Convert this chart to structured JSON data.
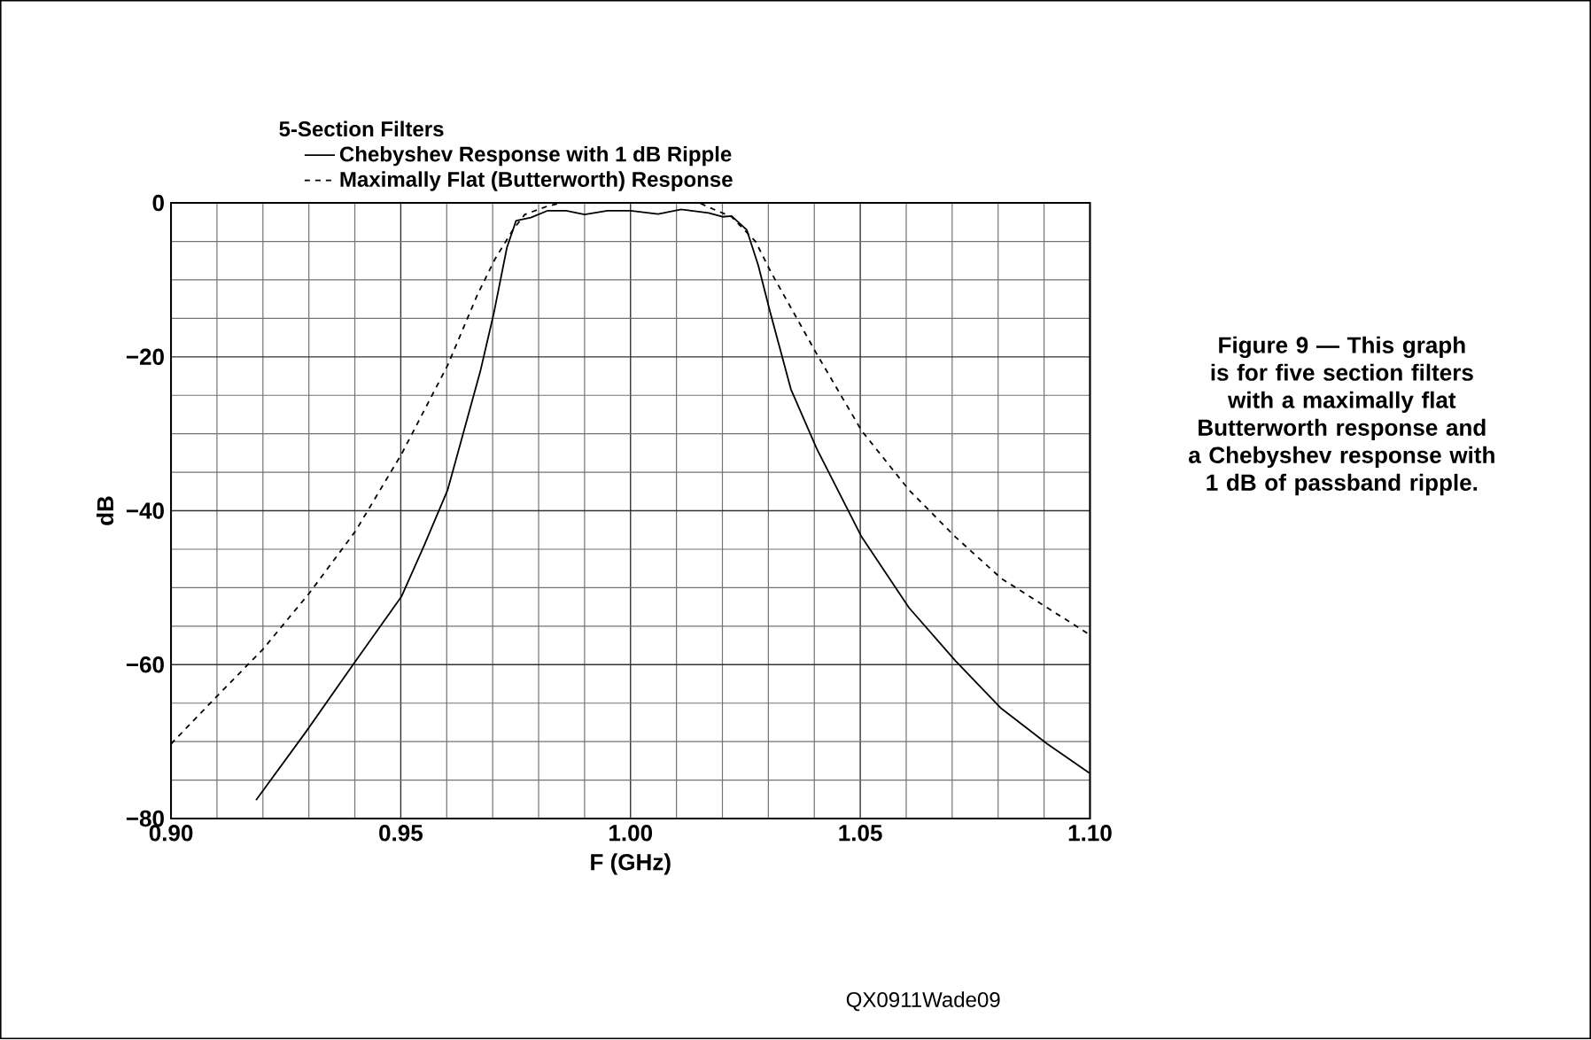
{
  "chart_data": {
    "type": "line",
    "legend_title": "5-Section Filters",
    "xlabel": "F (GHz)",
    "ylabel": "dB",
    "xlim": [
      0.9,
      1.1
    ],
    "ylim": [
      -80,
      0
    ],
    "xticks": [
      {
        "value": 0.9,
        "label": "0.90"
      },
      {
        "value": 0.95,
        "label": "0.95"
      },
      {
        "value": 1.0,
        "label": "1.00"
      },
      {
        "value": 1.05,
        "label": "1.05"
      },
      {
        "value": 1.1,
        "label": "1.10"
      }
    ],
    "yticks": [
      {
        "value": 0,
        "label": "0"
      },
      {
        "value": -20,
        "label": "−20"
      },
      {
        "value": -40,
        "label": "−40"
      },
      {
        "value": -60,
        "label": "−60"
      },
      {
        "value": -80,
        "label": "−80"
      }
    ],
    "grid": true,
    "legend": "top",
    "series": [
      {
        "name": "Chebyshev Response with 1 dB Ripple",
        "color": "#000000",
        "line_style": "solid",
        "x": [
          0.9185,
          0.9294,
          0.9402,
          0.9502,
          0.9551,
          0.9602,
          0.9673,
          0.9703,
          0.9731,
          0.9751,
          0.9783,
          0.982,
          0.986,
          0.99,
          0.995,
          1.0,
          1.006,
          1.011,
          1.017,
          1.02,
          1.022,
          1.0253,
          1.0278,
          1.0304,
          1.0349,
          1.0405,
          1.0503,
          1.0606,
          1.0707,
          1.0807,
          1.0907,
          1.0999
        ],
        "values": [
          -77.6,
          -68.7,
          -59.5,
          -51.1,
          -44.5,
          -37.3,
          -21.9,
          -14.2,
          -5.8,
          -2.3,
          -1.9,
          -1.0,
          -1.0,
          -1.5,
          -1.0,
          -1.0,
          -1.45,
          -0.85,
          -1.3,
          -1.8,
          -1.7,
          -3.5,
          -8.1,
          -14.2,
          -24.2,
          -31.9,
          -43.4,
          -52.6,
          -59.5,
          -65.7,
          -70.3,
          -74.1
        ]
      },
      {
        "name": "Maximally Flat (Butterworth) Response",
        "color": "#000000",
        "line_style": "dashed",
        "x": [
          0.9,
          0.91,
          0.92,
          0.9301,
          0.9402,
          0.9502,
          0.9602,
          0.9667,
          0.9705,
          0.9744,
          0.977,
          0.982,
          0.985,
          1.0,
          1.015,
          1.018,
          1.022,
          1.0272,
          1.0304,
          1.0362,
          1.0405,
          1.0503,
          1.0606,
          1.0707,
          1.0807,
          1.0907,
          1.0999
        ],
        "values": [
          -70.3,
          -64.1,
          -58.0,
          -50.7,
          -42.6,
          -32.6,
          -21.1,
          -11.9,
          -7.3,
          -3.5,
          -1.5,
          -0.4,
          0,
          0,
          0,
          -0.8,
          -1.8,
          -5.0,
          -8.8,
          -15.0,
          -19.6,
          -29.6,
          -37.3,
          -43.4,
          -48.8,
          -52.6,
          -56.1
        ]
      }
    ],
    "annotations": [
      "Figure 9 — This graph is for five section filters with a maximally flat Butterworth response and a Chebyshev response with 1 dB of passband ripple.",
      "QX0911Wade09"
    ]
  }
}
